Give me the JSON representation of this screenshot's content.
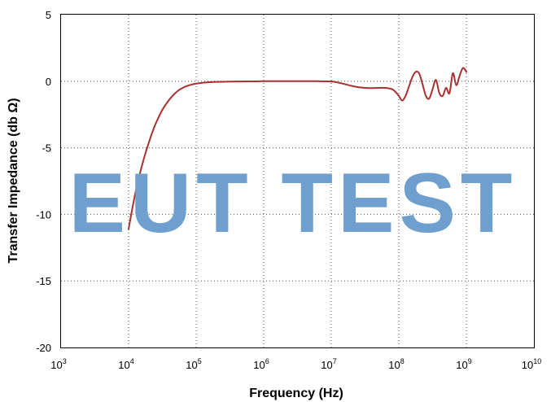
{
  "chart_data": {
    "type": "line",
    "xlabel": "Frequency (Hz)",
    "ylabel": "Transfer Impedance (db Ω)",
    "x_scale": "log",
    "xlim": [
      1000,
      10000000000
    ],
    "ylim": [
      -20,
      5
    ],
    "x_ticks": [
      {
        "base": "10",
        "exp": "3"
      },
      {
        "base": "10",
        "exp": "4"
      },
      {
        "base": "10",
        "exp": "5"
      },
      {
        "base": "10",
        "exp": "6"
      },
      {
        "base": "10",
        "exp": "7"
      },
      {
        "base": "10",
        "exp": "8"
      },
      {
        "base": "10",
        "exp": "9"
      },
      {
        "base": "10",
        "exp": "10"
      }
    ],
    "y_ticks": [
      "5",
      "0",
      "-5",
      "-10",
      "-15",
      "-20"
    ],
    "grid": true,
    "watermark": "EUT TEST",
    "colors": {
      "series": "#a8312f",
      "watermark": "#6f9fce"
    },
    "series": [
      {
        "x": [
          10000,
          11220,
          12590,
          14130,
          15850,
          17780,
          19950,
          22390,
          25120,
          28180,
          31620,
          35480,
          39810,
          44670,
          50120,
          56230,
          63100,
          70790,
          79430,
          89130,
          100000,
          125900,
          158500,
          199500,
          251200,
          316200,
          398100,
          501200,
          631000,
          794300,
          1000000,
          1585000,
          2512000,
          3981000,
          6310000,
          10000000,
          12590000,
          15850000,
          19950000,
          25120000,
          31620000,
          39810000,
          50120000,
          63100000,
          79430000,
          89130000,
          100000000,
          112200000,
          125900000,
          141300000,
          158500000,
          177800000,
          199500000,
          223900000,
          251200000,
          281800000,
          316200000,
          354800000,
          398100000,
          446700000,
          501200000,
          562300000,
          631000000,
          707900000,
          794300000,
          891300000,
          1000000000
        ],
        "y": [
          -11.1,
          -9.7,
          -8.4,
          -7.3,
          -6.3,
          -5.4,
          -4.6,
          -3.85,
          -3.2,
          -2.65,
          -2.15,
          -1.75,
          -1.4,
          -1.1,
          -0.85,
          -0.65,
          -0.5,
          -0.38,
          -0.3,
          -0.23,
          -0.18,
          -0.11,
          -0.07,
          -0.05,
          -0.04,
          -0.03,
          -0.02,
          -0.02,
          -0.01,
          -0.01,
          0.0,
          0.0,
          0.0,
          0.0,
          0.0,
          -0.02,
          -0.1,
          -0.22,
          -0.35,
          -0.45,
          -0.5,
          -0.52,
          -0.5,
          -0.5,
          -0.6,
          -0.8,
          -1.1,
          -1.45,
          -1.1,
          -0.4,
          0.3,
          0.7,
          0.6,
          -0.2,
          -1.1,
          -1.3,
          -0.6,
          0.1,
          -0.9,
          -1.1,
          -0.5,
          -0.9,
          0.6,
          -0.3,
          0.4,
          1.0,
          0.7
        ]
      }
    ]
  }
}
